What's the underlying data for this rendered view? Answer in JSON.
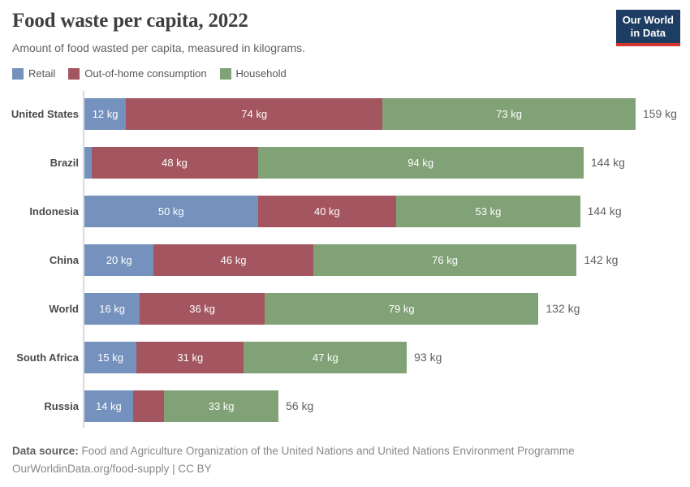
{
  "header": {
    "title": "Food waste per capita, 2022",
    "subtitle": "Amount of food wasted per capita, measured in kilograms.",
    "logo": {
      "line1": "Our World",
      "line2": "in Data",
      "bg_color": "#1d3d63",
      "accent_color": "#d4352d"
    }
  },
  "legend": {
    "items": [
      {
        "label": "Retail",
        "color": "#7591bd"
      },
      {
        "label": "Out-of-home consumption",
        "color": "#a3565f"
      },
      {
        "label": "Household",
        "color": "#80a276"
      }
    ]
  },
  "chart_data": {
    "type": "bar",
    "orientation": "horizontal",
    "stacked": true,
    "unit": "kg",
    "title": "Food waste per capita, 2022",
    "subtitle": "Amount of food wasted per capita, measured in kilograms.",
    "categories": [
      "United States",
      "Brazil",
      "Indonesia",
      "China",
      "World",
      "South Africa",
      "Russia"
    ],
    "series": [
      {
        "name": "Retail",
        "color": "#7591bd",
        "values": [
          12,
          2,
          50,
          20,
          16,
          15,
          14
        ]
      },
      {
        "name": "Out-of-home consumption",
        "color": "#a3565f",
        "values": [
          74,
          48,
          40,
          46,
          36,
          31,
          9
        ]
      },
      {
        "name": "Household",
        "color": "#80a276",
        "values": [
          73,
          94,
          53,
          76,
          79,
          47,
          33
        ]
      }
    ],
    "total_labels": [
      "159 kg",
      "144 kg",
      "144 kg",
      "142 kg",
      "132 kg",
      "93 kg",
      "56 kg"
    ],
    "segment_label_suffix": " kg",
    "xlim": [
      0,
      159
    ],
    "grid": false,
    "legend_position": "top",
    "unlabeled_segments_note": "Brazil Retail (2 kg) and Russia Out-of-home (9 kg) segments show no in-bar label"
  },
  "footer": {
    "datasource_label": "Data source:",
    "datasource_text": " Food and Agriculture Organization of the United Nations and United Nations Environment Programme",
    "attribution": "OurWorldinData.org/food-supply | CC BY"
  }
}
